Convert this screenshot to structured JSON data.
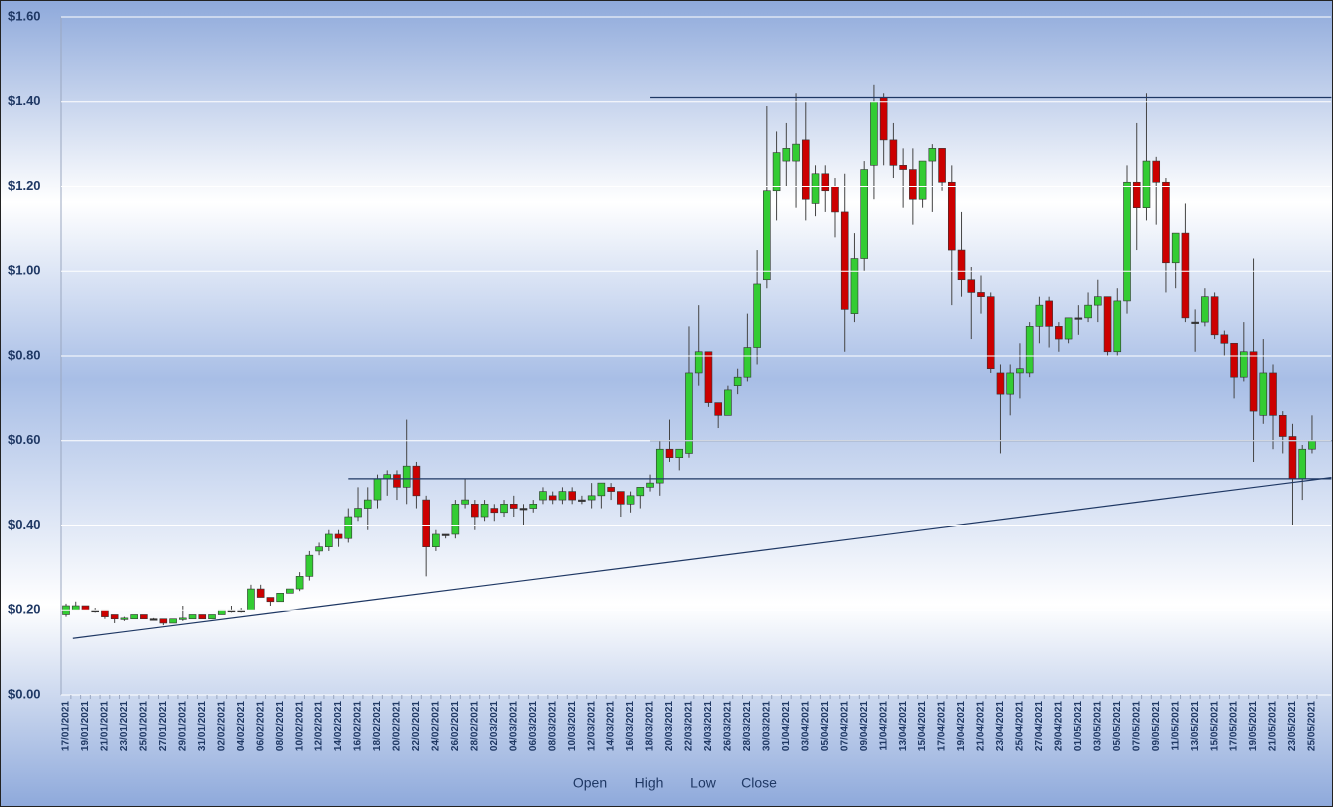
{
  "chart_data": {
    "type": "candlestick",
    "categories": [
      "17/01/2021",
      null,
      "19/01/2021",
      null,
      "21/01/2021",
      null,
      "23/01/2021",
      null,
      "25/01/2021",
      null,
      "27/01/2021",
      null,
      "29/01/2021",
      null,
      "31/01/2021",
      null,
      "02/02/2021",
      null,
      "04/02/2021",
      null,
      "06/02/2021",
      null,
      "08/02/2021",
      null,
      "10/02/2021",
      null,
      "12/02/2021",
      null,
      "14/02/2021",
      null,
      "16/02/2021",
      null,
      "18/02/2021",
      null,
      "20/02/2021",
      null,
      "22/02/2021",
      null,
      "24/02/2021",
      null,
      "26/02/2021",
      null,
      "28/02/2021",
      null,
      "02/03/2021",
      null,
      "04/03/2021",
      null,
      "06/03/2021",
      null,
      "08/03/2021",
      null,
      "10/03/2021",
      null,
      "12/03/2021",
      null,
      "14/03/2021",
      null,
      "16/03/2021",
      null,
      "18/03/2021",
      null,
      "20/03/2021",
      null,
      "22/03/2021",
      null,
      "24/03/2021",
      null,
      "26/03/2021",
      null,
      "28/03/2021",
      null,
      "30/03/2021",
      null,
      "01/04/2021",
      null,
      "03/04/2021",
      null,
      "05/04/2021",
      null,
      "07/04/2021",
      null,
      "09/04/2021",
      null,
      "11/04/2021",
      null,
      "13/04/2021",
      null,
      "15/04/2021",
      null,
      "17/04/2021",
      null,
      "19/04/2021",
      null,
      "21/04/2021",
      null,
      "23/04/2021",
      null,
      "25/04/2021",
      null,
      "27/04/2021",
      null,
      "29/04/2021",
      null,
      "01/05/2021",
      null,
      "03/05/2021",
      null,
      "05/05/2021",
      null,
      "07/05/2021",
      null,
      "09/05/2021",
      null,
      "11/05/2021",
      null,
      "13/05/2021",
      null,
      "15/05/2021",
      null,
      "17/05/2021",
      null,
      "19/05/2021",
      null,
      "21/05/2021",
      null,
      "23/05/2021",
      null,
      "25/05/2021"
    ],
    "series": [
      {
        "name": "Open",
        "values": [
          0.19,
          0.2,
          0.21,
          0.2,
          0.2,
          0.19,
          0.18,
          0.18,
          0.19,
          0.18,
          0.18,
          0.17,
          0.18,
          0.18,
          0.19,
          0.18,
          0.19,
          0.2,
          0.2,
          0.2,
          0.25,
          0.23,
          0.22,
          0.24,
          0.25,
          0.28,
          0.34,
          0.35,
          0.38,
          0.37,
          0.42,
          0.44,
          0.46,
          0.51,
          0.52,
          0.49,
          0.54,
          0.46,
          0.35,
          0.38,
          0.38,
          0.45,
          0.45,
          0.42,
          0.44,
          0.43,
          0.45,
          0.44,
          0.44,
          0.46,
          0.47,
          0.46,
          0.48,
          0.46,
          0.46,
          0.47,
          0.49,
          0.48,
          0.45,
          0.47,
          0.49,
          0.5,
          0.58,
          0.56,
          0.57,
          0.76,
          0.81,
          0.69,
          0.66,
          0.73,
          0.75,
          0.82,
          0.98,
          1.19,
          1.26,
          1.26,
          1.31,
          1.16,
          1.23,
          1.2,
          1.14,
          0.9,
          1.03,
          1.25,
          1.41,
          1.31,
          1.25,
          1.24,
          1.17,
          1.26,
          1.29,
          1.21,
          1.05,
          0.98,
          0.95,
          0.94,
          0.76,
          0.71,
          0.76,
          0.76,
          0.87,
          0.93,
          0.87,
          0.84,
          0.89,
          0.89,
          0.92,
          0.94,
          0.81,
          0.93,
          1.21,
          1.15,
          1.26,
          1.21,
          1.02,
          1.09,
          0.88,
          0.88,
          0.94,
          0.85,
          0.83,
          0.75,
          0.81,
          0.66,
          0.76,
          0.66,
          0.61,
          0.51,
          0.58
        ]
      },
      {
        "name": "High",
        "values": [
          0.215,
          0.22,
          0.21,
          0.205,
          0.2,
          0.19,
          0.185,
          0.19,
          0.19,
          0.182,
          0.18,
          0.18,
          0.21,
          0.19,
          0.19,
          0.19,
          0.2,
          0.21,
          0.205,
          0.26,
          0.26,
          0.23,
          0.24,
          0.25,
          0.29,
          0.34,
          0.36,
          0.39,
          0.39,
          0.44,
          0.49,
          0.49,
          0.52,
          0.53,
          0.53,
          0.65,
          0.55,
          0.47,
          0.39,
          0.38,
          0.46,
          0.51,
          0.46,
          0.46,
          0.45,
          0.46,
          0.47,
          0.45,
          0.46,
          0.49,
          0.48,
          0.49,
          0.49,
          0.47,
          0.5,
          0.5,
          0.5,
          0.48,
          0.48,
          0.49,
          0.52,
          0.6,
          0.65,
          0.58,
          0.87,
          0.92,
          0.81,
          0.69,
          0.73,
          0.77,
          0.9,
          1.05,
          1.39,
          1.33,
          1.35,
          1.42,
          1.4,
          1.25,
          1.25,
          1.22,
          1.23,
          1.09,
          1.26,
          1.44,
          1.42,
          1.35,
          1.29,
          1.29,
          1.26,
          1.3,
          1.29,
          1.25,
          1.14,
          1.01,
          0.99,
          0.95,
          0.78,
          0.78,
          0.83,
          0.88,
          0.94,
          0.94,
          0.88,
          0.89,
          0.92,
          0.95,
          0.98,
          0.94,
          0.96,
          1.25,
          1.35,
          1.42,
          1.27,
          1.22,
          1.09,
          1.16,
          0.91,
          0.96,
          0.95,
          0.86,
          0.83,
          0.88,
          1.03,
          0.84,
          0.78,
          0.67,
          0.64,
          0.59,
          0.66
        ]
      },
      {
        "name": "Low",
        "values": [
          0.185,
          0.2,
          0.2,
          0.195,
          0.18,
          0.17,
          0.175,
          0.18,
          0.18,
          0.178,
          0.165,
          0.17,
          0.175,
          0.18,
          0.18,
          0.18,
          0.19,
          0.195,
          0.195,
          0.2,
          0.23,
          0.21,
          0.22,
          0.24,
          0.245,
          0.27,
          0.33,
          0.34,
          0.35,
          0.36,
          0.41,
          0.39,
          0.44,
          0.47,
          0.46,
          0.45,
          0.44,
          0.28,
          0.34,
          0.37,
          0.37,
          0.44,
          0.39,
          0.41,
          0.41,
          0.42,
          0.42,
          0.4,
          0.43,
          0.45,
          0.45,
          0.45,
          0.45,
          0.45,
          0.44,
          0.44,
          0.46,
          0.42,
          0.43,
          0.44,
          0.48,
          0.47,
          0.55,
          0.53,
          0.56,
          0.73,
          0.68,
          0.63,
          0.66,
          0.71,
          0.74,
          0.78,
          0.96,
          1.12,
          1.2,
          1.15,
          1.12,
          1.13,
          1.14,
          1.08,
          0.81,
          0.88,
          1.0,
          1.17,
          1.25,
          1.22,
          1.15,
          1.11,
          1.15,
          1.14,
          1.19,
          0.92,
          0.94,
          0.84,
          0.9,
          0.76,
          0.57,
          0.66,
          0.7,
          0.75,
          0.83,
          0.82,
          0.81,
          0.83,
          0.85,
          0.88,
          0.88,
          0.8,
          0.8,
          0.9,
          1.05,
          1.12,
          1.11,
          0.95,
          0.96,
          0.88,
          0.81,
          0.87,
          0.84,
          0.8,
          0.7,
          0.74,
          0.55,
          0.64,
          0.58,
          0.57,
          0.4,
          0.46,
          0.57
        ]
      },
      {
        "name": "Close",
        "values": [
          0.21,
          0.21,
          0.2,
          0.2,
          0.185,
          0.18,
          0.182,
          0.19,
          0.18,
          0.18,
          0.17,
          0.18,
          0.182,
          0.19,
          0.18,
          0.19,
          0.2,
          0.2,
          0.2,
          0.25,
          0.23,
          0.22,
          0.24,
          0.25,
          0.28,
          0.33,
          0.35,
          0.38,
          0.37,
          0.42,
          0.44,
          0.46,
          0.51,
          0.52,
          0.49,
          0.54,
          0.47,
          0.35,
          0.38,
          0.38,
          0.45,
          0.46,
          0.42,
          0.45,
          0.43,
          0.45,
          0.44,
          0.44,
          0.45,
          0.48,
          0.46,
          0.48,
          0.46,
          0.46,
          0.47,
          0.5,
          0.48,
          0.45,
          0.47,
          0.49,
          0.5,
          0.58,
          0.56,
          0.58,
          0.76,
          0.81,
          0.69,
          0.66,
          0.72,
          0.75,
          0.82,
          0.97,
          1.19,
          1.28,
          1.29,
          1.3,
          1.17,
          1.23,
          1.19,
          1.14,
          0.91,
          1.03,
          1.24,
          1.4,
          1.31,
          1.25,
          1.24,
          1.17,
          1.26,
          1.29,
          1.21,
          1.05,
          0.98,
          0.95,
          0.94,
          0.77,
          0.71,
          0.76,
          0.77,
          0.87,
          0.92,
          0.87,
          0.84,
          0.89,
          0.89,
          0.92,
          0.94,
          0.81,
          0.93,
          1.21,
          1.15,
          1.26,
          1.21,
          1.02,
          1.09,
          0.89,
          0.88,
          0.94,
          0.85,
          0.83,
          0.75,
          0.81,
          0.67,
          0.76,
          0.66,
          0.61,
          0.51,
          0.58,
          0.6
        ]
      }
    ],
    "up_color": "#33cc33",
    "down_color": "#cc0000",
    "flat_color": "#333333",
    "ylim": [
      0,
      1.6
    ],
    "yticks": [
      {
        "value": 0,
        "label": "$0.00"
      },
      {
        "value": 0.2,
        "label": "$0.20"
      },
      {
        "value": 0.4,
        "label": "$0.40"
      },
      {
        "value": 0.6,
        "label": "$0.60"
      },
      {
        "value": 0.8,
        "label": "$0.80"
      },
      {
        "value": 1,
        "label": "$1.00"
      },
      {
        "value": 1.2,
        "label": "$1.20"
      },
      {
        "value": 1.4,
        "label": "$1.40"
      },
      {
        "value": 1.6,
        "label": "$1.60"
      }
    ],
    "grid": true,
    "lines": [
      {
        "x": [
          60,
          130
        ],
        "y": [
          1.41,
          1.41
        ]
      },
      {
        "x": [
          60,
          130
        ],
        "y": [
          0.6,
          0.6
        ]
      },
      {
        "x": [
          29,
          130
        ],
        "y": [
          0.51,
          0.51
        ]
      },
      {
        "x": [
          0.7,
          130
        ],
        "y": [
          0.134,
          0.513
        ]
      }
    ],
    "line_color": "#1f3864",
    "legend": "bottom"
  }
}
